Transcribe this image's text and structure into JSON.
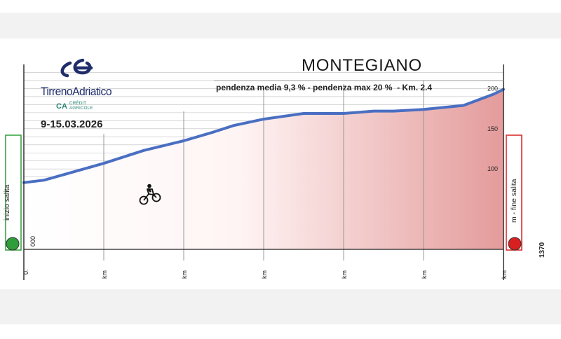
{
  "race": {
    "name": "TirrenoAdriatico",
    "sponsor_mark": "CA",
    "sponsor_name": "CRÉDIT\nAGRICOLE",
    "dates": "9-15.03.2026"
  },
  "climb": {
    "name": "MONTEGIANO",
    "stats": "pendenza media 9,3 % - pendenza max 20 %  - Km. 2.4"
  },
  "markers": {
    "start_label": "inizio salita",
    "end_label": "m  - fine salita",
    "end_altitude": "1370",
    "start_color": "#2e9e3a",
    "end_color": "#d82020"
  },
  "colors": {
    "line": "#4a6fc2",
    "fill_dark": "#e49b9b",
    "fill_light": "#ffffff",
    "axis": "#222222",
    "grid": "#bdbdbd"
  },
  "chart_data": {
    "type": "area",
    "title": "MONTEGIANO",
    "x_labels": [
      "0.",
      "km",
      "km",
      "km",
      "km",
      "km",
      "km"
    ],
    "x_label_km": [
      0,
      0.4,
      0.8,
      1.2,
      1.6,
      2.0,
      2.4
    ],
    "y_tick_labels": [
      "000",
      "100",
      "150",
      "200"
    ],
    "y_tick_values": [
      0,
      100,
      150,
      200
    ],
    "ylim": [
      0,
      230
    ],
    "xlim": [
      0,
      2.4
    ],
    "grid": true,
    "x": [
      0.0,
      0.1,
      0.2,
      0.4,
      0.6,
      0.8,
      0.95,
      1.05,
      1.2,
      1.4,
      1.6,
      1.75,
      1.85,
      2.0,
      2.2,
      2.35,
      2.4
    ],
    "y": [
      83,
      86,
      93,
      107,
      123,
      135,
      146,
      154,
      162,
      169,
      169,
      172,
      172,
      174,
      179,
      193,
      199
    ]
  }
}
